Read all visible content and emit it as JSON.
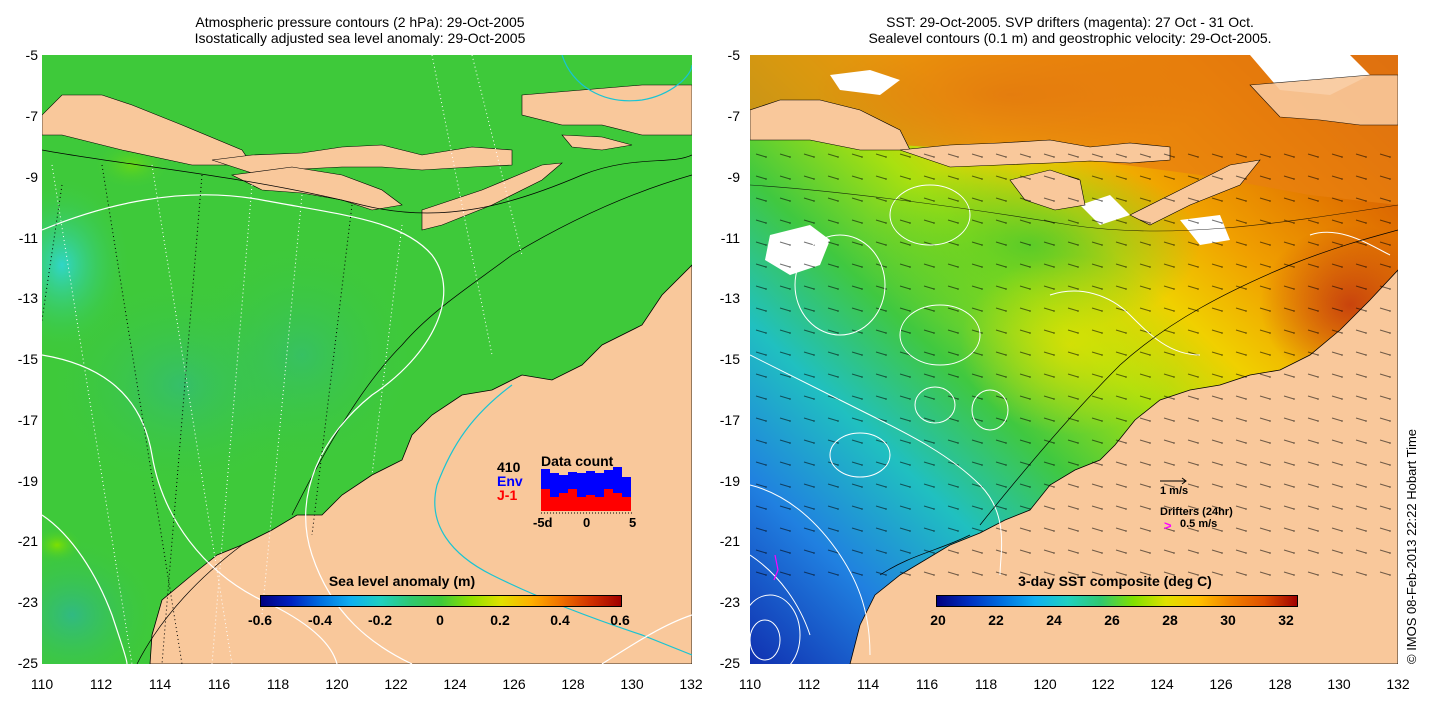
{
  "left_panel": {
    "title_line1": "Atmospheric pressure contours (2 hPa): 29-Oct-2005",
    "title_line2": "Isostatically adjusted sea level anomaly: 29-Oct-2005",
    "colorbar_title": "Sea level anomaly (m)",
    "colorbar_ticks": [
      "-0.6",
      "-0.4",
      "-0.2",
      "0",
      "0.2",
      "0.4",
      "0.6"
    ],
    "data_count": {
      "title": "Data count",
      "count": "410",
      "series1_label": "Env",
      "series2_label": "J-1",
      "axis_labels": [
        "-5d",
        "0",
        "5"
      ],
      "env_color": "#0000ff",
      "j1_color": "#ff0000"
    }
  },
  "right_panel": {
    "title_line1": "SST: 29-Oct-2005. SVP drifters (magenta): 27 Oct - 31 Oct.",
    "title_line2": "Sealevel contours (0.1 m) and geostrophic velocity: 29-Oct-2005.",
    "colorbar_title": "3-day SST composite (deg C)",
    "colorbar_ticks": [
      "20",
      "22",
      "24",
      "26",
      "28",
      "30",
      "32"
    ],
    "velocity_label": "1 m/s",
    "drifters_label": "Drifters (24hr)",
    "drifters_speed": "0.5 m/s",
    "drifter_glyph": ">",
    "drifter_color": "#ff00ff"
  },
  "y_ticks": [
    "-5",
    "-7",
    "-9",
    "-11",
    "-13",
    "-15",
    "-17",
    "-19",
    "-21",
    "-23",
    "-25"
  ],
  "x_ticks": [
    "110",
    "112",
    "114",
    "116",
    "118",
    "120",
    "122",
    "124",
    "126",
    "128",
    "130",
    "132"
  ],
  "copyright": "© IMOS 08-Feb-2013 22:22 Hobart Time",
  "colors": {
    "land": "#f9c89b",
    "ocean_sla": "#3ec93a",
    "white": "#ffffff"
  }
}
